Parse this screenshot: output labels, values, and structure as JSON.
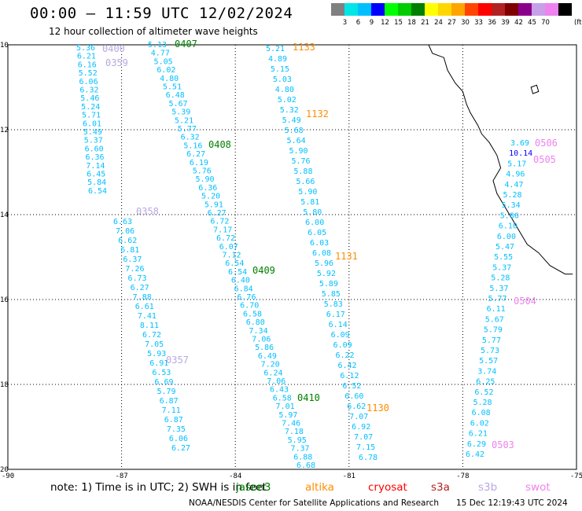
{
  "header": {
    "title": "00:00 — 11:59 UTC 12/02/2024",
    "subtitle": "12 hour collection of altimeter wave heights"
  },
  "legend": {
    "unit": "(ft)",
    "bins": [
      {
        "label": "",
        "color": "#808080"
      },
      {
        "label": "3",
        "color": "#00e5e5"
      },
      {
        "label": "6",
        "color": "#00bfff"
      },
      {
        "label": "9",
        "color": "#0000ff"
      },
      {
        "label": "12",
        "color": "#00ff00"
      },
      {
        "label": "15",
        "color": "#00cc00"
      },
      {
        "label": "18",
        "color": "#008000"
      },
      {
        "label": "21",
        "color": "#ffff00"
      },
      {
        "label": "24",
        "color": "#ffd700"
      },
      {
        "label": "27",
        "color": "#ffa500"
      },
      {
        "label": "30",
        "color": "#ff4500"
      },
      {
        "label": "33",
        "color": "#ff0000"
      },
      {
        "label": "36",
        "color": "#b22222"
      },
      {
        "label": "39",
        "color": "#800000"
      },
      {
        "label": "42",
        "color": "#8b008b"
      },
      {
        "label": "45",
        "color": "#c8a0e8"
      },
      {
        "label": "70",
        "color": "#ee82ee"
      },
      {
        "label": "",
        "color": "#000000"
      }
    ]
  },
  "axes": {
    "lat_labels": [
      "10",
      "12",
      "14",
      "16",
      "18",
      "20"
    ],
    "lon_labels": [
      "-90",
      "-87",
      "-84",
      "-81",
      "-78",
      "-75"
    ]
  },
  "colors": {
    "jason3": "#008000",
    "altika": "#ff8c00",
    "cryosat": "#ff0000",
    "s3a": "#b22222",
    "s3b": "#b8a8e0",
    "swot": "#ee82ee",
    "swh": "#00bfff"
  },
  "passes": [
    {
      "id": "0400",
      "satellite": "s3b",
      "values": [
        "5.36",
        "6.21",
        "6.16",
        "5.52",
        "6.06",
        "6.32",
        "5.46",
        "5.24",
        "5.71",
        "6.01",
        "5.49",
        "5.37",
        "6.60",
        "6.36",
        "7.14",
        "6.45",
        "5.84",
        "6.54"
      ]
    },
    {
      "id": "0359",
      "satellite": "s3b",
      "values": []
    },
    {
      "id": "0358",
      "satellite": "s3b",
      "values": [
        "6.63",
        "7.06",
        "6.62",
        "6.81",
        "6.37",
        "7.26",
        "6.73",
        "6.27",
        "7.88",
        "6.61",
        "7.41",
        "8.11",
        "6.72",
        "7.05",
        "5.93",
        "6.91",
        "6.53",
        "6.69",
        "5.79",
        "6.87",
        "7.11",
        "6.87",
        "7.35",
        "6.06",
        "6.27"
      ]
    },
    {
      "id": "0357",
      "satellite": "s3b",
      "values": []
    },
    {
      "id": "0407",
      "satellite": "jason3",
      "values": [
        "5.13",
        "4.77",
        "5.05",
        "6.02",
        "4.80",
        "5.51",
        "6.48",
        "5.67",
        "5.39",
        "5.21",
        "5.77",
        "6.32",
        "5.16",
        "6.27",
        "6.19",
        "5.76",
        "5.90",
        "6.36",
        "5.20",
        "5.91",
        "6.27",
        "6.72",
        "7.17",
        "6.72",
        "6.07",
        "7.12",
        "6.54",
        "6.54",
        "6.40",
        "6.84",
        "6.76",
        "6.70",
        "6.58",
        "6.80",
        "7.34",
        "7.06",
        "5.86",
        "6.49",
        "7.20",
        "6.24",
        "7.06",
        "6.43",
        "6.58",
        "7.01",
        "5.97",
        "7.46",
        "7.18",
        "5.95",
        "7.37",
        "6.88",
        "6.68"
      ]
    },
    {
      "id": "0408",
      "satellite": "jason3",
      "values": []
    },
    {
      "id": "0409",
      "satellite": "jason3",
      "values": []
    },
    {
      "id": "0410",
      "satellite": "jason3",
      "values": []
    },
    {
      "id": "1133",
      "satellite": "altika",
      "values": [
        "5.21",
        "4.89",
        "5.15",
        "5.03",
        "4.80",
        "5.02",
        "5.32",
        "5.49",
        "5.68",
        "5.64",
        "5.90",
        "5.76",
        "5.88",
        "5.66",
        "5.90",
        "5.81",
        "5.80",
        "6.00",
        "6.05",
        "6.03",
        "6.08",
        "5.96",
        "5.92",
        "5.89",
        "5.85",
        "5.83",
        "6.17",
        "6.14",
        "6.09",
        "6.09",
        "6.22",
        "6.42",
        "6.12",
        "6.52",
        "6.60",
        "6.62",
        "7.07",
        "6.92",
        "7.07",
        "7.15",
        "6.78"
      ]
    },
    {
      "id": "1132",
      "satellite": "altika",
      "values": []
    },
    {
      "id": "1131",
      "satellite": "altika",
      "values": []
    },
    {
      "id": "1130",
      "satellite": "altika",
      "values": []
    },
    {
      "id": "0506",
      "satellite": "swot",
      "values": [
        "3.69",
        "10.14",
        "5.17",
        "4.96",
        "4.47",
        "5.28",
        "5.34",
        "5.86",
        "6.10",
        "6.00",
        "5.47",
        "5.55",
        "5.37",
        "5.28",
        "5.37",
        "5.77",
        "6.11",
        "5.67",
        "5.79",
        "5.77",
        "5.73",
        "5.57",
        "3.74",
        "6.25",
        "6.52",
        "5.28",
        "6.08",
        "6.02",
        "6.21",
        "6.29",
        "6.42"
      ]
    },
    {
      "id": "0505",
      "satellite": "swot",
      "values": []
    },
    {
      "id": "0504",
      "satellite": "swot",
      "values": []
    },
    {
      "id": "0503",
      "satellite": "swot",
      "values": []
    }
  ],
  "footer": {
    "note": "note:  1) Time is in UTC; 2) SWH is in feet",
    "satellites": [
      {
        "key": "jason3",
        "label": "jason3",
        "color": "#008000"
      },
      {
        "key": "altika",
        "label": "altika",
        "color": "#ff8c00"
      },
      {
        "key": "cryosat",
        "label": "cryosat",
        "color": "#ff0000"
      },
      {
        "key": "s3a",
        "label": "s3a",
        "color": "#b22222"
      },
      {
        "key": "s3b",
        "label": "s3b",
        "color": "#b8a8e0"
      },
      {
        "key": "swot",
        "label": "swot",
        "color": "#ee82ee"
      }
    ],
    "credit": "NOAA/NESDIS Center for Satellite Applications and Research",
    "generated": "15 Dec 12:19:43 UTC 2024"
  }
}
